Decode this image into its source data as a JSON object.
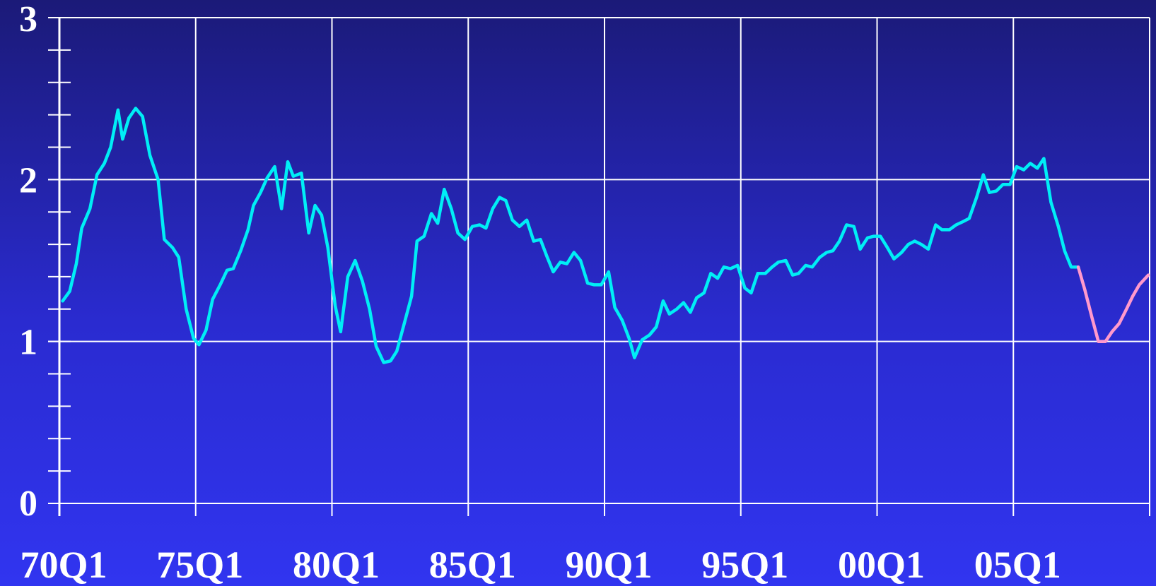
{
  "chart_data": {
    "type": "line",
    "title": "",
    "xlabel": "",
    "ylabel": "",
    "ylim": [
      0,
      3
    ],
    "xlim": [
      1970.0,
      2010.0
    ],
    "yticks": [
      {
        "value": 0,
        "label": "0"
      },
      {
        "value": 1,
        "label": "1"
      },
      {
        "value": 2,
        "label": "2"
      },
      {
        "value": 3,
        "label": "3"
      }
    ],
    "y_minor_step": 0.2,
    "xticks": [
      {
        "value": 1970,
        "label": "70Q1"
      },
      {
        "value": 1975,
        "label": "75Q1"
      },
      {
        "value": 1980,
        "label": "80Q1"
      },
      {
        "value": 1985,
        "label": "85Q1"
      },
      {
        "value": 1990,
        "label": "90Q1"
      },
      {
        "value": 1995,
        "label": "95Q1"
      },
      {
        "value": 2000,
        "label": "00Q1"
      },
      {
        "value": 2005,
        "label": "05Q1"
      }
    ],
    "grid": true,
    "series": [
      {
        "color": "#00eef6",
        "points": [
          [
            1970.12,
            1.25
          ],
          [
            1970.38,
            1.31
          ],
          [
            1970.62,
            1.48
          ],
          [
            1970.82,
            1.7
          ],
          [
            1971.12,
            1.82
          ],
          [
            1971.38,
            2.03
          ],
          [
            1971.65,
            2.1
          ],
          [
            1971.88,
            2.2
          ],
          [
            1972.15,
            2.43
          ],
          [
            1972.32,
            2.25
          ],
          [
            1972.55,
            2.38
          ],
          [
            1972.8,
            2.44
          ],
          [
            1973.05,
            2.39
          ],
          [
            1973.32,
            2.15
          ],
          [
            1973.62,
            2.0
          ],
          [
            1973.85,
            1.63
          ],
          [
            1974.15,
            1.58
          ],
          [
            1974.38,
            1.52
          ],
          [
            1974.65,
            1.2
          ],
          [
            1974.92,
            1.02
          ],
          [
            1975.12,
            0.98
          ],
          [
            1975.38,
            1.07
          ],
          [
            1975.62,
            1.26
          ],
          [
            1975.9,
            1.35
          ],
          [
            1976.15,
            1.44
          ],
          [
            1976.38,
            1.45
          ],
          [
            1976.65,
            1.56
          ],
          [
            1976.92,
            1.69
          ],
          [
            1977.12,
            1.84
          ],
          [
            1977.38,
            1.92
          ],
          [
            1977.62,
            2.01
          ],
          [
            1977.9,
            2.08
          ],
          [
            1978.15,
            1.82
          ],
          [
            1978.38,
            2.11
          ],
          [
            1978.58,
            2.02
          ],
          [
            1978.88,
            2.04
          ],
          [
            1979.15,
            1.67
          ],
          [
            1979.38,
            1.84
          ],
          [
            1979.62,
            1.78
          ],
          [
            1979.85,
            1.58
          ],
          [
            1980.12,
            1.22
          ],
          [
            1980.32,
            1.06
          ],
          [
            1980.58,
            1.4
          ],
          [
            1980.85,
            1.5
          ],
          [
            1981.12,
            1.37
          ],
          [
            1981.38,
            1.2
          ],
          [
            1981.62,
            0.97
          ],
          [
            1981.9,
            0.87
          ],
          [
            1982.15,
            0.88
          ],
          [
            1982.38,
            0.94
          ],
          [
            1982.65,
            1.11
          ],
          [
            1982.92,
            1.28
          ],
          [
            1983.12,
            1.62
          ],
          [
            1983.38,
            1.65
          ],
          [
            1983.65,
            1.79
          ],
          [
            1983.88,
            1.73
          ],
          [
            1984.12,
            1.94
          ],
          [
            1984.38,
            1.82
          ],
          [
            1984.62,
            1.67
          ],
          [
            1984.88,
            1.63
          ],
          [
            1985.15,
            1.71
          ],
          [
            1985.42,
            1.72
          ],
          [
            1985.65,
            1.7
          ],
          [
            1985.9,
            1.82
          ],
          [
            1986.15,
            1.89
          ],
          [
            1986.38,
            1.87
          ],
          [
            1986.62,
            1.75
          ],
          [
            1986.88,
            1.71
          ],
          [
            1987.15,
            1.75
          ],
          [
            1987.4,
            1.62
          ],
          [
            1987.65,
            1.63
          ],
          [
            1987.9,
            1.52
          ],
          [
            1988.12,
            1.43
          ],
          [
            1988.38,
            1.49
          ],
          [
            1988.62,
            1.48
          ],
          [
            1988.88,
            1.55
          ],
          [
            1989.12,
            1.5
          ],
          [
            1989.38,
            1.36
          ],
          [
            1989.62,
            1.35
          ],
          [
            1989.88,
            1.35
          ],
          [
            1990.15,
            1.43
          ],
          [
            1990.38,
            1.21
          ],
          [
            1990.65,
            1.13
          ],
          [
            1990.9,
            1.02
          ],
          [
            1991.1,
            0.9
          ],
          [
            1991.38,
            1.01
          ],
          [
            1991.65,
            1.04
          ],
          [
            1991.9,
            1.09
          ],
          [
            1992.15,
            1.25
          ],
          [
            1992.38,
            1.17
          ],
          [
            1992.65,
            1.2
          ],
          [
            1992.9,
            1.24
          ],
          [
            1993.15,
            1.18
          ],
          [
            1993.38,
            1.27
          ],
          [
            1993.65,
            1.3
          ],
          [
            1993.9,
            1.42
          ],
          [
            1994.15,
            1.39
          ],
          [
            1994.38,
            1.46
          ],
          [
            1994.62,
            1.45
          ],
          [
            1994.88,
            1.47
          ],
          [
            1995.15,
            1.33
          ],
          [
            1995.38,
            1.3
          ],
          [
            1995.62,
            1.42
          ],
          [
            1995.9,
            1.42
          ],
          [
            1996.15,
            1.46
          ],
          [
            1996.38,
            1.49
          ],
          [
            1996.65,
            1.5
          ],
          [
            1996.9,
            1.41
          ],
          [
            1997.12,
            1.42
          ],
          [
            1997.38,
            1.47
          ],
          [
            1997.62,
            1.46
          ],
          [
            1997.9,
            1.52
          ],
          [
            1998.15,
            1.55
          ],
          [
            1998.38,
            1.56
          ],
          [
            1998.62,
            1.62
          ],
          [
            1998.88,
            1.72
          ],
          [
            1999.15,
            1.71
          ],
          [
            1999.38,
            1.57
          ],
          [
            1999.65,
            1.64
          ],
          [
            1999.88,
            1.65
          ],
          [
            2000.12,
            1.65
          ],
          [
            2000.38,
            1.58
          ],
          [
            2000.62,
            1.51
          ],
          [
            2000.9,
            1.55
          ],
          [
            2001.15,
            1.6
          ],
          [
            2001.38,
            1.62
          ],
          [
            2001.62,
            1.6
          ],
          [
            2001.88,
            1.57
          ],
          [
            2002.15,
            1.72
          ],
          [
            2002.38,
            1.69
          ],
          [
            2002.65,
            1.69
          ],
          [
            2002.9,
            1.72
          ],
          [
            2003.15,
            1.74
          ],
          [
            2003.38,
            1.76
          ],
          [
            2003.65,
            1.89
          ],
          [
            2003.9,
            2.03
          ],
          [
            2004.12,
            1.92
          ],
          [
            2004.38,
            1.93
          ],
          [
            2004.62,
            1.97
          ],
          [
            2004.88,
            1.97
          ],
          [
            2005.12,
            2.08
          ],
          [
            2005.38,
            2.06
          ],
          [
            2005.62,
            2.1
          ],
          [
            2005.88,
            2.07
          ],
          [
            2006.12,
            2.13
          ],
          [
            2006.38,
            1.86
          ],
          [
            2006.65,
            1.71
          ],
          [
            2006.88,
            1.56
          ],
          [
            2007.12,
            1.46
          ],
          [
            2007.38,
            1.46
          ]
        ]
      },
      {
        "color": "#ff99cc",
        "points": [
          [
            2007.38,
            1.46
          ],
          [
            2007.62,
            1.32
          ],
          [
            2007.88,
            1.15
          ],
          [
            2008.12,
            1.0
          ],
          [
            2008.38,
            1.0
          ],
          [
            2008.62,
            1.06
          ],
          [
            2008.88,
            1.11
          ],
          [
            2009.12,
            1.19
          ],
          [
            2009.38,
            1.28
          ],
          [
            2009.62,
            1.35
          ],
          [
            2009.95,
            1.41
          ]
        ]
      }
    ]
  }
}
